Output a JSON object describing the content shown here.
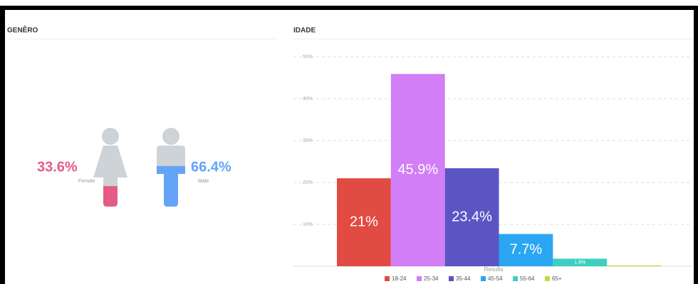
{
  "gender": {
    "title": "GENÊRO",
    "items": [
      {
        "label": "Female",
        "value": 33.6,
        "value_label": "33.6%",
        "color": "#e45c86"
      },
      {
        "label": "Male",
        "value": 66.4,
        "value_label": "66.4%",
        "color": "#63a4f7"
      }
    ]
  },
  "chart_data": {
    "type": "bar",
    "title": "IDADE",
    "x_label": "Results",
    "categories": [
      "18-24",
      "25-34",
      "35-44",
      "45-54",
      "55-64",
      "65+"
    ],
    "values": [
      21,
      45.9,
      23.4,
      7.7,
      1.8,
      0.2
    ],
    "value_labels": [
      "21%",
      "45.9%",
      "23.4%",
      "7.7%",
      "1.8%",
      null
    ],
    "colors": [
      "#e24b43",
      "#d17ef7",
      "#5b55c4",
      "#2aa6f2",
      "#3ccfc0",
      "#c9d63c"
    ],
    "ylim": [
      0,
      50
    ],
    "yticks": [
      {
        "value": 10,
        "label": "10%"
      },
      {
        "value": 20,
        "label": "20%"
      },
      {
        "value": 30,
        "label": "30%"
      },
      {
        "value": 40,
        "label": "40%"
      },
      {
        "value": 50,
        "label": "50%"
      }
    ],
    "grid": true,
    "legend": "bottom"
  }
}
